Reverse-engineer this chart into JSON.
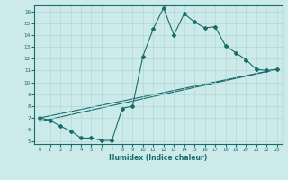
{
  "xlabel": "Humidex (Indice chaleur)",
  "bg_color": "#cceaea",
  "line_color": "#1a6b6b",
  "grid_color": "#b0d8d8",
  "xlim": [
    -0.5,
    23.5
  ],
  "ylim": [
    4.8,
    16.5
  ],
  "yticks": [
    5,
    6,
    7,
    8,
    9,
    10,
    11,
    12,
    13,
    14,
    15,
    16
  ],
  "xticks": [
    0,
    1,
    2,
    3,
    4,
    5,
    6,
    7,
    8,
    9,
    10,
    11,
    12,
    13,
    14,
    15,
    16,
    17,
    18,
    19,
    20,
    21,
    22,
    23
  ],
  "line1_x": [
    0,
    1,
    2,
    3,
    4,
    5,
    6,
    7,
    8,
    9,
    10,
    11,
    12,
    13,
    14,
    15,
    16,
    17,
    18,
    19,
    20,
    21,
    22,
    23
  ],
  "line1_y": [
    7.0,
    6.8,
    6.3,
    5.9,
    5.3,
    5.3,
    5.1,
    5.1,
    7.8,
    8.0,
    12.2,
    14.5,
    16.3,
    14.0,
    15.8,
    15.1,
    14.6,
    14.7,
    13.1,
    12.5,
    11.9,
    11.1,
    11.0,
    11.1
  ],
  "line2_x": [
    0,
    23
  ],
  "line2_y": [
    7.0,
    11.1
  ],
  "line3_x": [
    0,
    23
  ],
  "line3_y": [
    6.7,
    11.1
  ]
}
